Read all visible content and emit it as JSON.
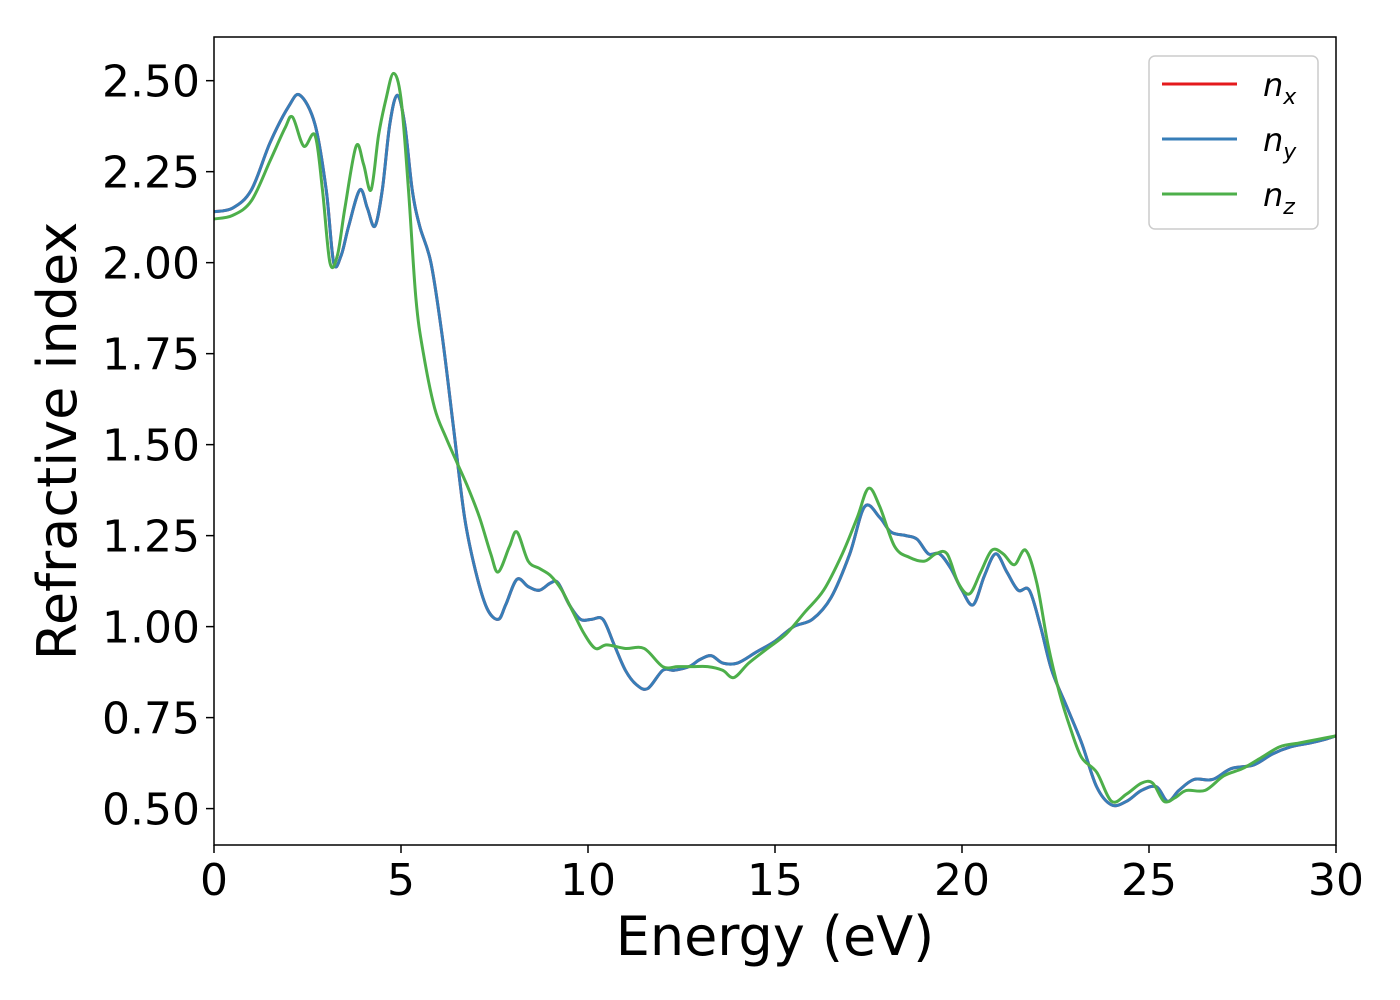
{
  "chart_data": {
    "type": "line",
    "xlabel": "Energy (eV)",
    "ylabel": "Refractive index",
    "xlim": [
      0,
      30
    ],
    "ylim": [
      0.4,
      2.62
    ],
    "xticks": [
      0,
      5,
      10,
      15,
      20,
      25,
      30
    ],
    "xtick_labels": [
      "0",
      "5",
      "10",
      "15",
      "20",
      "25",
      "30"
    ],
    "yticks": [
      0.5,
      0.75,
      1.0,
      1.25,
      1.5,
      1.75,
      2.0,
      2.25,
      2.5
    ],
    "ytick_labels": [
      "0.50",
      "0.75",
      "1.00",
      "1.25",
      "1.50",
      "1.75",
      "2.00",
      "2.25",
      "2.50"
    ],
    "grid": false,
    "legend_position": "top-right",
    "series": [
      {
        "name": "n_x",
        "label_base": "n",
        "label_sub": "x",
        "color": "#e41a1c",
        "x": [
          0,
          0.5,
          1.0,
          1.5,
          2.0,
          2.3,
          2.7,
          3.0,
          3.2,
          3.4,
          3.6,
          3.9,
          4.1,
          4.3,
          4.5,
          4.7,
          4.9,
          5.1,
          5.3,
          5.5,
          5.8,
          6.1,
          6.4,
          6.7,
          7.0,
          7.3,
          7.6,
          7.8,
          8.1,
          8.4,
          8.7,
          9.0,
          9.2,
          9.5,
          9.8,
          10.1,
          10.4,
          10.7,
          11.0,
          11.3,
          11.6,
          12.0,
          12.3,
          12.7,
          13.0,
          13.3,
          13.6,
          14.0,
          14.5,
          15.0,
          15.5,
          16.0,
          16.5,
          17.0,
          17.4,
          17.8,
          18.1,
          18.5,
          18.8,
          19.1,
          19.4,
          19.7,
          20.0,
          20.3,
          20.6,
          20.9,
          21.2,
          21.5,
          21.8,
          22.1,
          22.4,
          22.8,
          23.2,
          23.6,
          24.0,
          24.4,
          24.8,
          25.2,
          25.5,
          25.8,
          26.2,
          26.7,
          27.2,
          27.8,
          28.3,
          28.8,
          29.3,
          29.7,
          30.0
        ],
        "y": [
          2.14,
          2.15,
          2.2,
          2.33,
          2.43,
          2.46,
          2.38,
          2.2,
          2.0,
          2.02,
          2.1,
          2.2,
          2.15,
          2.1,
          2.2,
          2.38,
          2.46,
          2.38,
          2.2,
          2.1,
          2.0,
          1.8,
          1.55,
          1.3,
          1.15,
          1.05,
          1.02,
          1.06,
          1.13,
          1.11,
          1.1,
          1.12,
          1.12,
          1.06,
          1.02,
          1.02,
          1.02,
          0.95,
          0.88,
          0.84,
          0.83,
          0.88,
          0.88,
          0.89,
          0.91,
          0.92,
          0.9,
          0.9,
          0.93,
          0.96,
          1.0,
          1.02,
          1.08,
          1.2,
          1.33,
          1.3,
          1.26,
          1.25,
          1.24,
          1.2,
          1.2,
          1.16,
          1.1,
          1.06,
          1.14,
          1.2,
          1.15,
          1.1,
          1.1,
          1.0,
          0.88,
          0.78,
          0.68,
          0.56,
          0.51,
          0.52,
          0.55,
          0.56,
          0.52,
          0.55,
          0.58,
          0.58,
          0.61,
          0.62,
          0.65,
          0.67,
          0.68,
          0.69,
          0.7
        ]
      },
      {
        "name": "n_y",
        "label_base": "n",
        "label_sub": "y",
        "color": "#377eb8",
        "x": [
          0,
          0.5,
          1.0,
          1.5,
          2.0,
          2.3,
          2.7,
          3.0,
          3.2,
          3.4,
          3.6,
          3.9,
          4.1,
          4.3,
          4.5,
          4.7,
          4.9,
          5.1,
          5.3,
          5.5,
          5.8,
          6.1,
          6.4,
          6.7,
          7.0,
          7.3,
          7.6,
          7.8,
          8.1,
          8.4,
          8.7,
          9.0,
          9.2,
          9.5,
          9.8,
          10.1,
          10.4,
          10.7,
          11.0,
          11.3,
          11.6,
          12.0,
          12.3,
          12.7,
          13.0,
          13.3,
          13.6,
          14.0,
          14.5,
          15.0,
          15.5,
          16.0,
          16.5,
          17.0,
          17.4,
          17.8,
          18.1,
          18.5,
          18.8,
          19.1,
          19.4,
          19.7,
          20.0,
          20.3,
          20.6,
          20.9,
          21.2,
          21.5,
          21.8,
          22.1,
          22.4,
          22.8,
          23.2,
          23.6,
          24.0,
          24.4,
          24.8,
          25.2,
          25.5,
          25.8,
          26.2,
          26.7,
          27.2,
          27.8,
          28.3,
          28.8,
          29.3,
          29.7,
          30.0
        ],
        "y": [
          2.14,
          2.15,
          2.2,
          2.33,
          2.43,
          2.46,
          2.38,
          2.2,
          2.0,
          2.02,
          2.1,
          2.2,
          2.15,
          2.1,
          2.2,
          2.38,
          2.46,
          2.38,
          2.2,
          2.1,
          2.0,
          1.8,
          1.55,
          1.3,
          1.15,
          1.05,
          1.02,
          1.06,
          1.13,
          1.11,
          1.1,
          1.12,
          1.12,
          1.06,
          1.02,
          1.02,
          1.02,
          0.95,
          0.88,
          0.84,
          0.83,
          0.88,
          0.88,
          0.89,
          0.91,
          0.92,
          0.9,
          0.9,
          0.93,
          0.96,
          1.0,
          1.02,
          1.08,
          1.2,
          1.33,
          1.3,
          1.26,
          1.25,
          1.24,
          1.2,
          1.2,
          1.16,
          1.1,
          1.06,
          1.14,
          1.2,
          1.15,
          1.1,
          1.1,
          1.0,
          0.88,
          0.78,
          0.68,
          0.56,
          0.51,
          0.52,
          0.55,
          0.56,
          0.52,
          0.55,
          0.58,
          0.58,
          0.61,
          0.62,
          0.65,
          0.67,
          0.68,
          0.69,
          0.7
        ]
      },
      {
        "name": "n_z",
        "label_base": "n",
        "label_sub": "z",
        "color": "#4daf4a",
        "x": [
          0,
          0.5,
          1.0,
          1.5,
          1.9,
          2.1,
          2.4,
          2.7,
          2.9,
          3.1,
          3.3,
          3.5,
          3.8,
          4.0,
          4.2,
          4.4,
          4.6,
          4.8,
          5.0,
          5.2,
          5.4,
          5.6,
          5.9,
          6.2,
          6.5,
          6.8,
          7.1,
          7.4,
          7.6,
          7.9,
          8.1,
          8.4,
          8.7,
          9.0,
          9.3,
          9.6,
          9.9,
          10.2,
          10.5,
          11.0,
          11.5,
          12.0,
          12.4,
          12.8,
          13.2,
          13.6,
          13.9,
          14.3,
          14.8,
          15.3,
          15.8,
          16.3,
          16.8,
          17.2,
          17.5,
          17.8,
          18.2,
          18.6,
          19.0,
          19.3,
          19.6,
          19.9,
          20.2,
          20.5,
          20.8,
          21.1,
          21.4,
          21.7,
          22.0,
          22.3,
          22.6,
          22.9,
          23.2,
          23.6,
          24.0,
          24.4,
          24.8,
          25.1,
          25.4,
          25.7,
          26.0,
          26.5,
          27.0,
          27.5,
          28.0,
          28.5,
          29.0,
          29.5,
          30.0
        ],
        "y": [
          2.12,
          2.13,
          2.17,
          2.28,
          2.37,
          2.4,
          2.32,
          2.35,
          2.2,
          2.0,
          2.02,
          2.15,
          2.32,
          2.27,
          2.2,
          2.35,
          2.45,
          2.52,
          2.45,
          2.2,
          1.9,
          1.75,
          1.6,
          1.52,
          1.45,
          1.38,
          1.3,
          1.2,
          1.15,
          1.22,
          1.26,
          1.18,
          1.16,
          1.14,
          1.1,
          1.04,
          0.98,
          0.94,
          0.95,
          0.94,
          0.94,
          0.89,
          0.89,
          0.89,
          0.89,
          0.88,
          0.86,
          0.9,
          0.94,
          0.98,
          1.04,
          1.1,
          1.2,
          1.3,
          1.38,
          1.33,
          1.22,
          1.19,
          1.18,
          1.2,
          1.2,
          1.12,
          1.09,
          1.15,
          1.21,
          1.2,
          1.17,
          1.21,
          1.12,
          0.95,
          0.82,
          0.72,
          0.64,
          0.6,
          0.52,
          0.54,
          0.57,
          0.57,
          0.52,
          0.53,
          0.55,
          0.55,
          0.59,
          0.61,
          0.64,
          0.67,
          0.68,
          0.69,
          0.7
        ]
      }
    ]
  }
}
